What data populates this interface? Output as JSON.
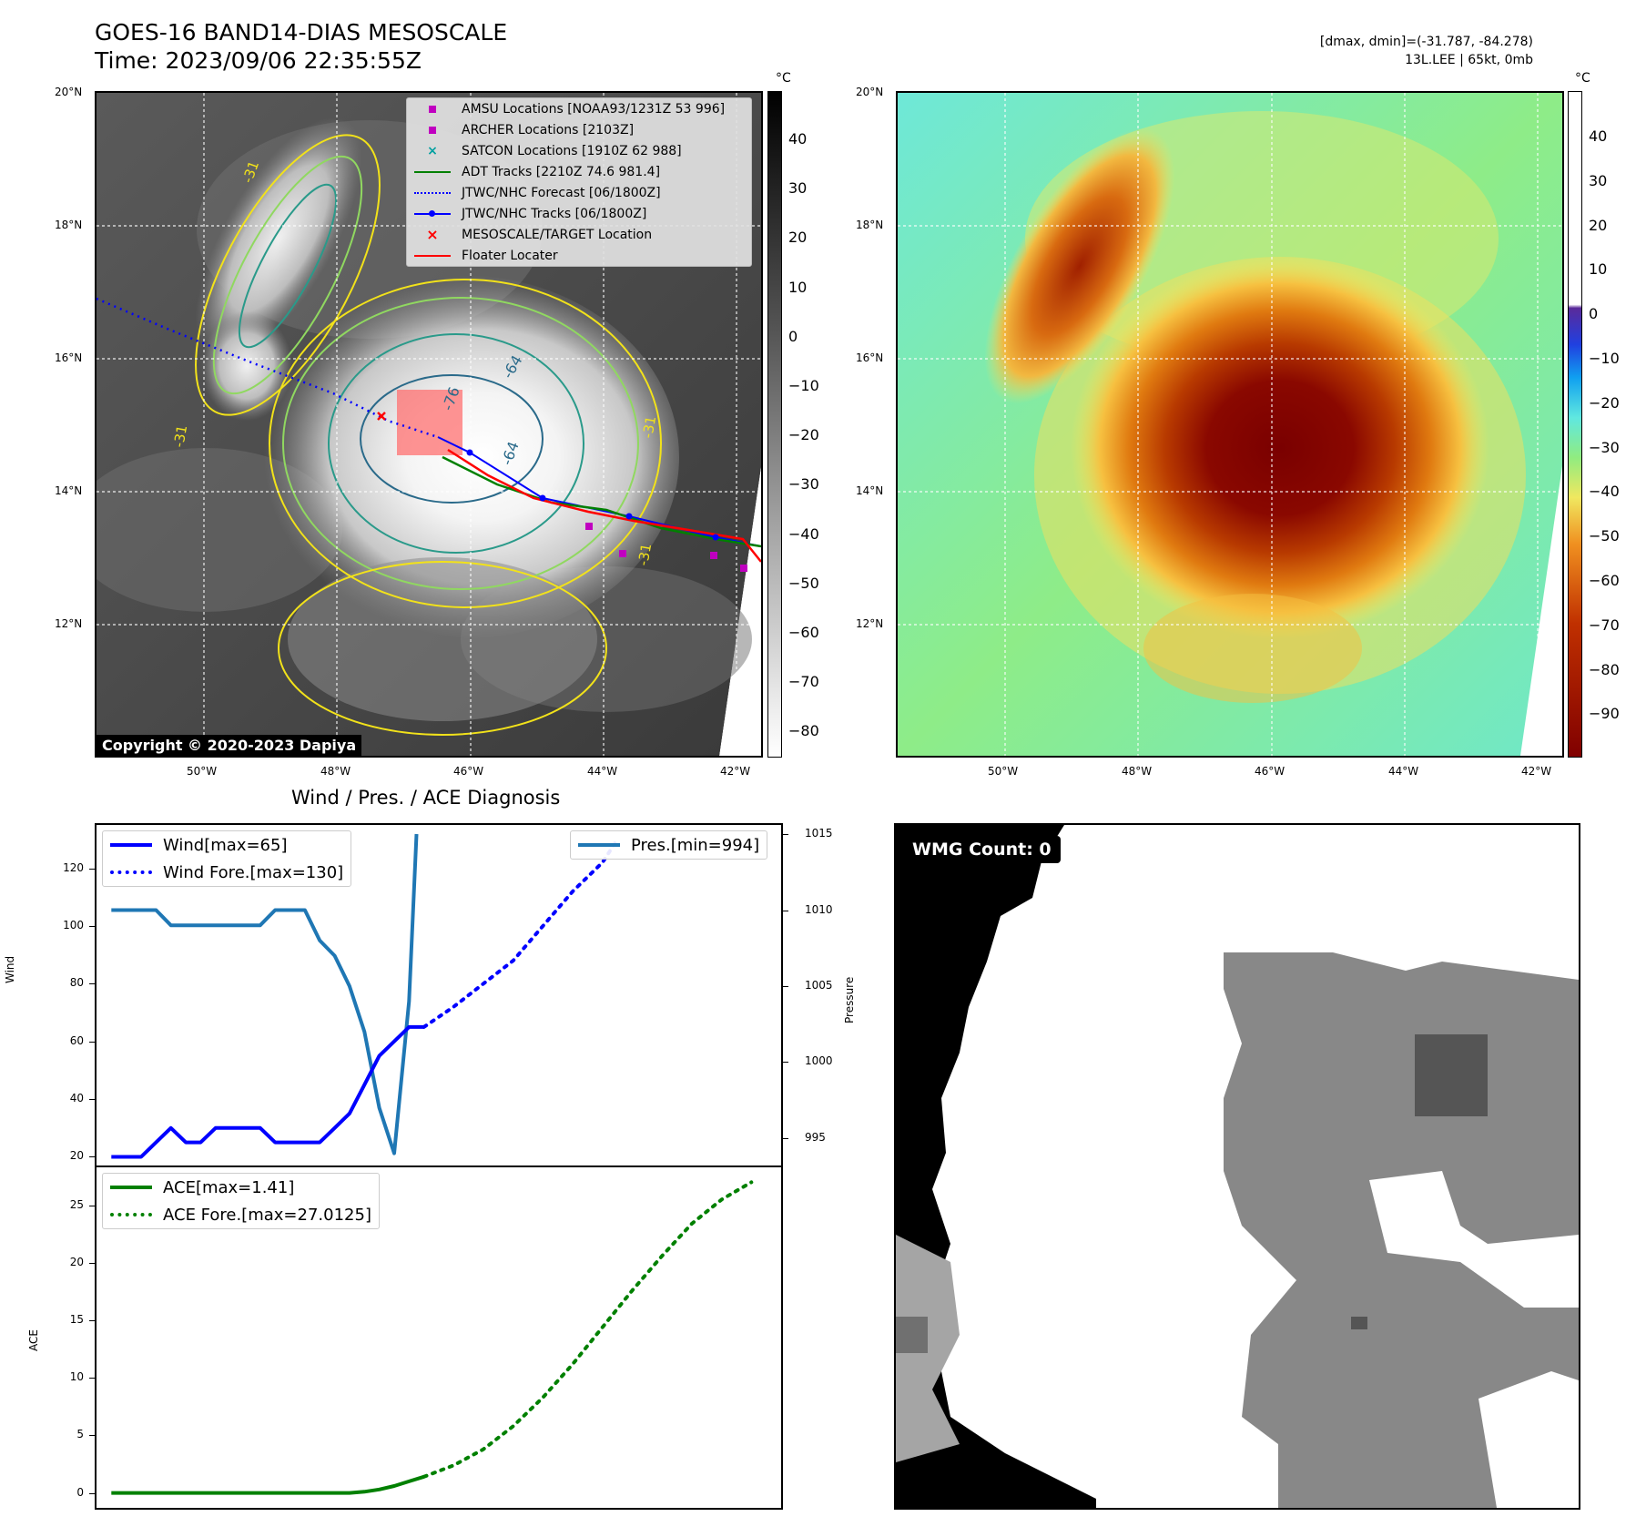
{
  "header": {
    "title": "GOES-16 BAND14-DIAS MESOSCALE",
    "time": "Time: 2023/09/06 22:35:55Z",
    "dmax_dmin": "[dmax, dmin]=(-31.787, -84.278)",
    "storm": "13L.LEE | 65kt, 0mb"
  },
  "ir_panel": {
    "lat_labels": [
      "20°N",
      "18°N",
      "16°N",
      "14°N",
      "12°N"
    ],
    "lon_labels": [
      "50°W",
      "48°W",
      "46°W",
      "44°W",
      "42°W"
    ],
    "colorbar_unit": "°C",
    "colorbar_ticks": [
      "40",
      "30",
      "20",
      "10",
      "0",
      "−10",
      "−20",
      "−30",
      "−40",
      "−50",
      "−60",
      "−70",
      "−80"
    ],
    "copyright": "Copyright © 2020-2023 Dapiya",
    "contour_labels": [
      "-76",
      "-64",
      "-64",
      "-31",
      "-31",
      "-31",
      "-31"
    ],
    "legend": [
      {
        "label": "AMSU Locations [NOAA93/1231Z 53 996]",
        "color": "#c000c0",
        "symbol": "square"
      },
      {
        "label": "ARCHER Locations [2103Z]",
        "color": "#c000c0",
        "symbol": "square"
      },
      {
        "label": "SATCON Locations [1910Z 62 988]",
        "color": "#00a0a0",
        "symbol": "x"
      },
      {
        "label": "ADT Tracks [2210Z 74.6 981.4]",
        "color": "#008000",
        "symbol": "line"
      },
      {
        "label": "JTWC/NHC Forecast [06/1800Z]",
        "color": "#0000ff",
        "symbol": "dotted"
      },
      {
        "label": "JTWC/NHC Tracks [06/1800Z]",
        "color": "#0000ff",
        "symbol": "line-dot"
      },
      {
        "label": "MESOSCALE/TARGET Location",
        "color": "#ff0000",
        "symbol": "x"
      },
      {
        "label": "Floater Locater",
        "color": "#ff0000",
        "symbol": "line"
      }
    ]
  },
  "color_panel": {
    "lat_labels": [
      "20°N",
      "18°N",
      "16°N",
      "14°N",
      "12°N"
    ],
    "lon_labels": [
      "50°W",
      "48°W",
      "46°W",
      "44°W",
      "42°W"
    ],
    "colorbar_unit": "°C",
    "colorbar_ticks": [
      "40",
      "30",
      "20",
      "10",
      "0",
      "−10",
      "−20",
      "−30",
      "−40",
      "−50",
      "−60",
      "−70",
      "−80",
      "−90"
    ]
  },
  "wind_panel": {
    "title": "Wind / Pres. / ACE Diagnosis",
    "ylabel_left": "Wind",
    "ylabel_right": "Pressure",
    "legend_wind": "Wind[max=65]",
    "legend_wind_fore": "Wind Fore.[max=130]",
    "legend_pres": "Pres.[min=994]"
  },
  "ace_panel": {
    "ylabel": "ACE",
    "legend_ace": "ACE[max=1.41]",
    "legend_ace_fore": "ACE Fore.[max=27.0125]"
  },
  "wmg_panel": {
    "label": "WMG Count: 0"
  },
  "chart_data": [
    {
      "type": "line",
      "title": "Wind / Pres. / ACE Diagnosis",
      "ylabel": "Wind",
      "ylim": [
        17,
        135
      ],
      "yticks": [
        20,
        40,
        60,
        80,
        100,
        120
      ],
      "x": [
        0,
        1,
        2,
        3,
        4,
        5,
        6,
        7,
        8,
        9,
        10,
        11,
        12,
        13,
        14,
        15,
        16,
        17,
        18,
        19,
        20,
        21
      ],
      "series": [
        {
          "name": "Wind[max=65]",
          "color": "#0000ff",
          "style": "solid",
          "x": [
            0,
            1,
            2,
            3,
            4,
            5,
            6,
            7,
            8,
            9,
            10,
            11,
            12,
            13,
            14,
            15,
            16,
            17,
            18,
            19,
            20,
            21
          ],
          "values": [
            20,
            20,
            20,
            25,
            30,
            25,
            25,
            30,
            30,
            30,
            30,
            25,
            25,
            25,
            25,
            30,
            35,
            45,
            55,
            60,
            65,
            65
          ]
        },
        {
          "name": "Wind Fore.[max=130]",
          "color": "#0000ff",
          "style": "dotted",
          "x": [
            21,
            23,
            25,
            27,
            29,
            31,
            33,
            34
          ],
          "values": [
            65,
            72,
            80,
            88,
            100,
            112,
            122,
            130
          ]
        }
      ]
    },
    {
      "type": "line",
      "ylabel": "Pressure",
      "ylim": [
        993.2,
        1015.6
      ],
      "yticks": [
        995,
        1000,
        1005,
        1010,
        1015
      ],
      "series": [
        {
          "name": "Pres.[min=994]",
          "color": "#1f77b4",
          "style": "solid",
          "x": [
            0,
            1,
            2,
            3,
            4,
            5,
            6,
            7,
            8,
            9,
            10,
            11,
            12,
            13,
            14,
            15,
            16,
            17,
            18,
            19,
            20,
            20.5
          ],
          "values": [
            1010,
            1010,
            1010,
            1010,
            1009,
            1009,
            1009,
            1009,
            1009,
            1009,
            1009,
            1010,
            1010,
            1010,
            1008,
            1007,
            1005,
            1002,
            997,
            994,
            1004,
            1015
          ]
        }
      ]
    },
    {
      "type": "line",
      "ylabel": "ACE",
      "ylim": [
        -1.3,
        28.3
      ],
      "yticks": [
        0,
        5,
        10,
        15,
        20,
        25
      ],
      "series": [
        {
          "name": "ACE[max=1.41]",
          "color": "#008000",
          "style": "solid",
          "x": [
            0,
            2,
            4,
            6,
            8,
            10,
            12,
            14,
            16,
            17,
            18,
            19,
            20,
            21
          ],
          "values": [
            0,
            0,
            0,
            0,
            0,
            0,
            0,
            0,
            0,
            0.1,
            0.3,
            0.6,
            1.0,
            1.41
          ]
        },
        {
          "name": "ACE Fore.[max=27.0125]",
          "color": "#008000",
          "style": "dotted",
          "x": [
            21,
            23,
            25,
            27,
            29,
            31,
            33,
            35,
            37,
            39,
            41,
            43
          ],
          "values": [
            1.41,
            2.4,
            3.8,
            5.8,
            8.3,
            11.2,
            14.4,
            17.6,
            20.6,
            23.4,
            25.5,
            27.0
          ]
        }
      ]
    }
  ]
}
